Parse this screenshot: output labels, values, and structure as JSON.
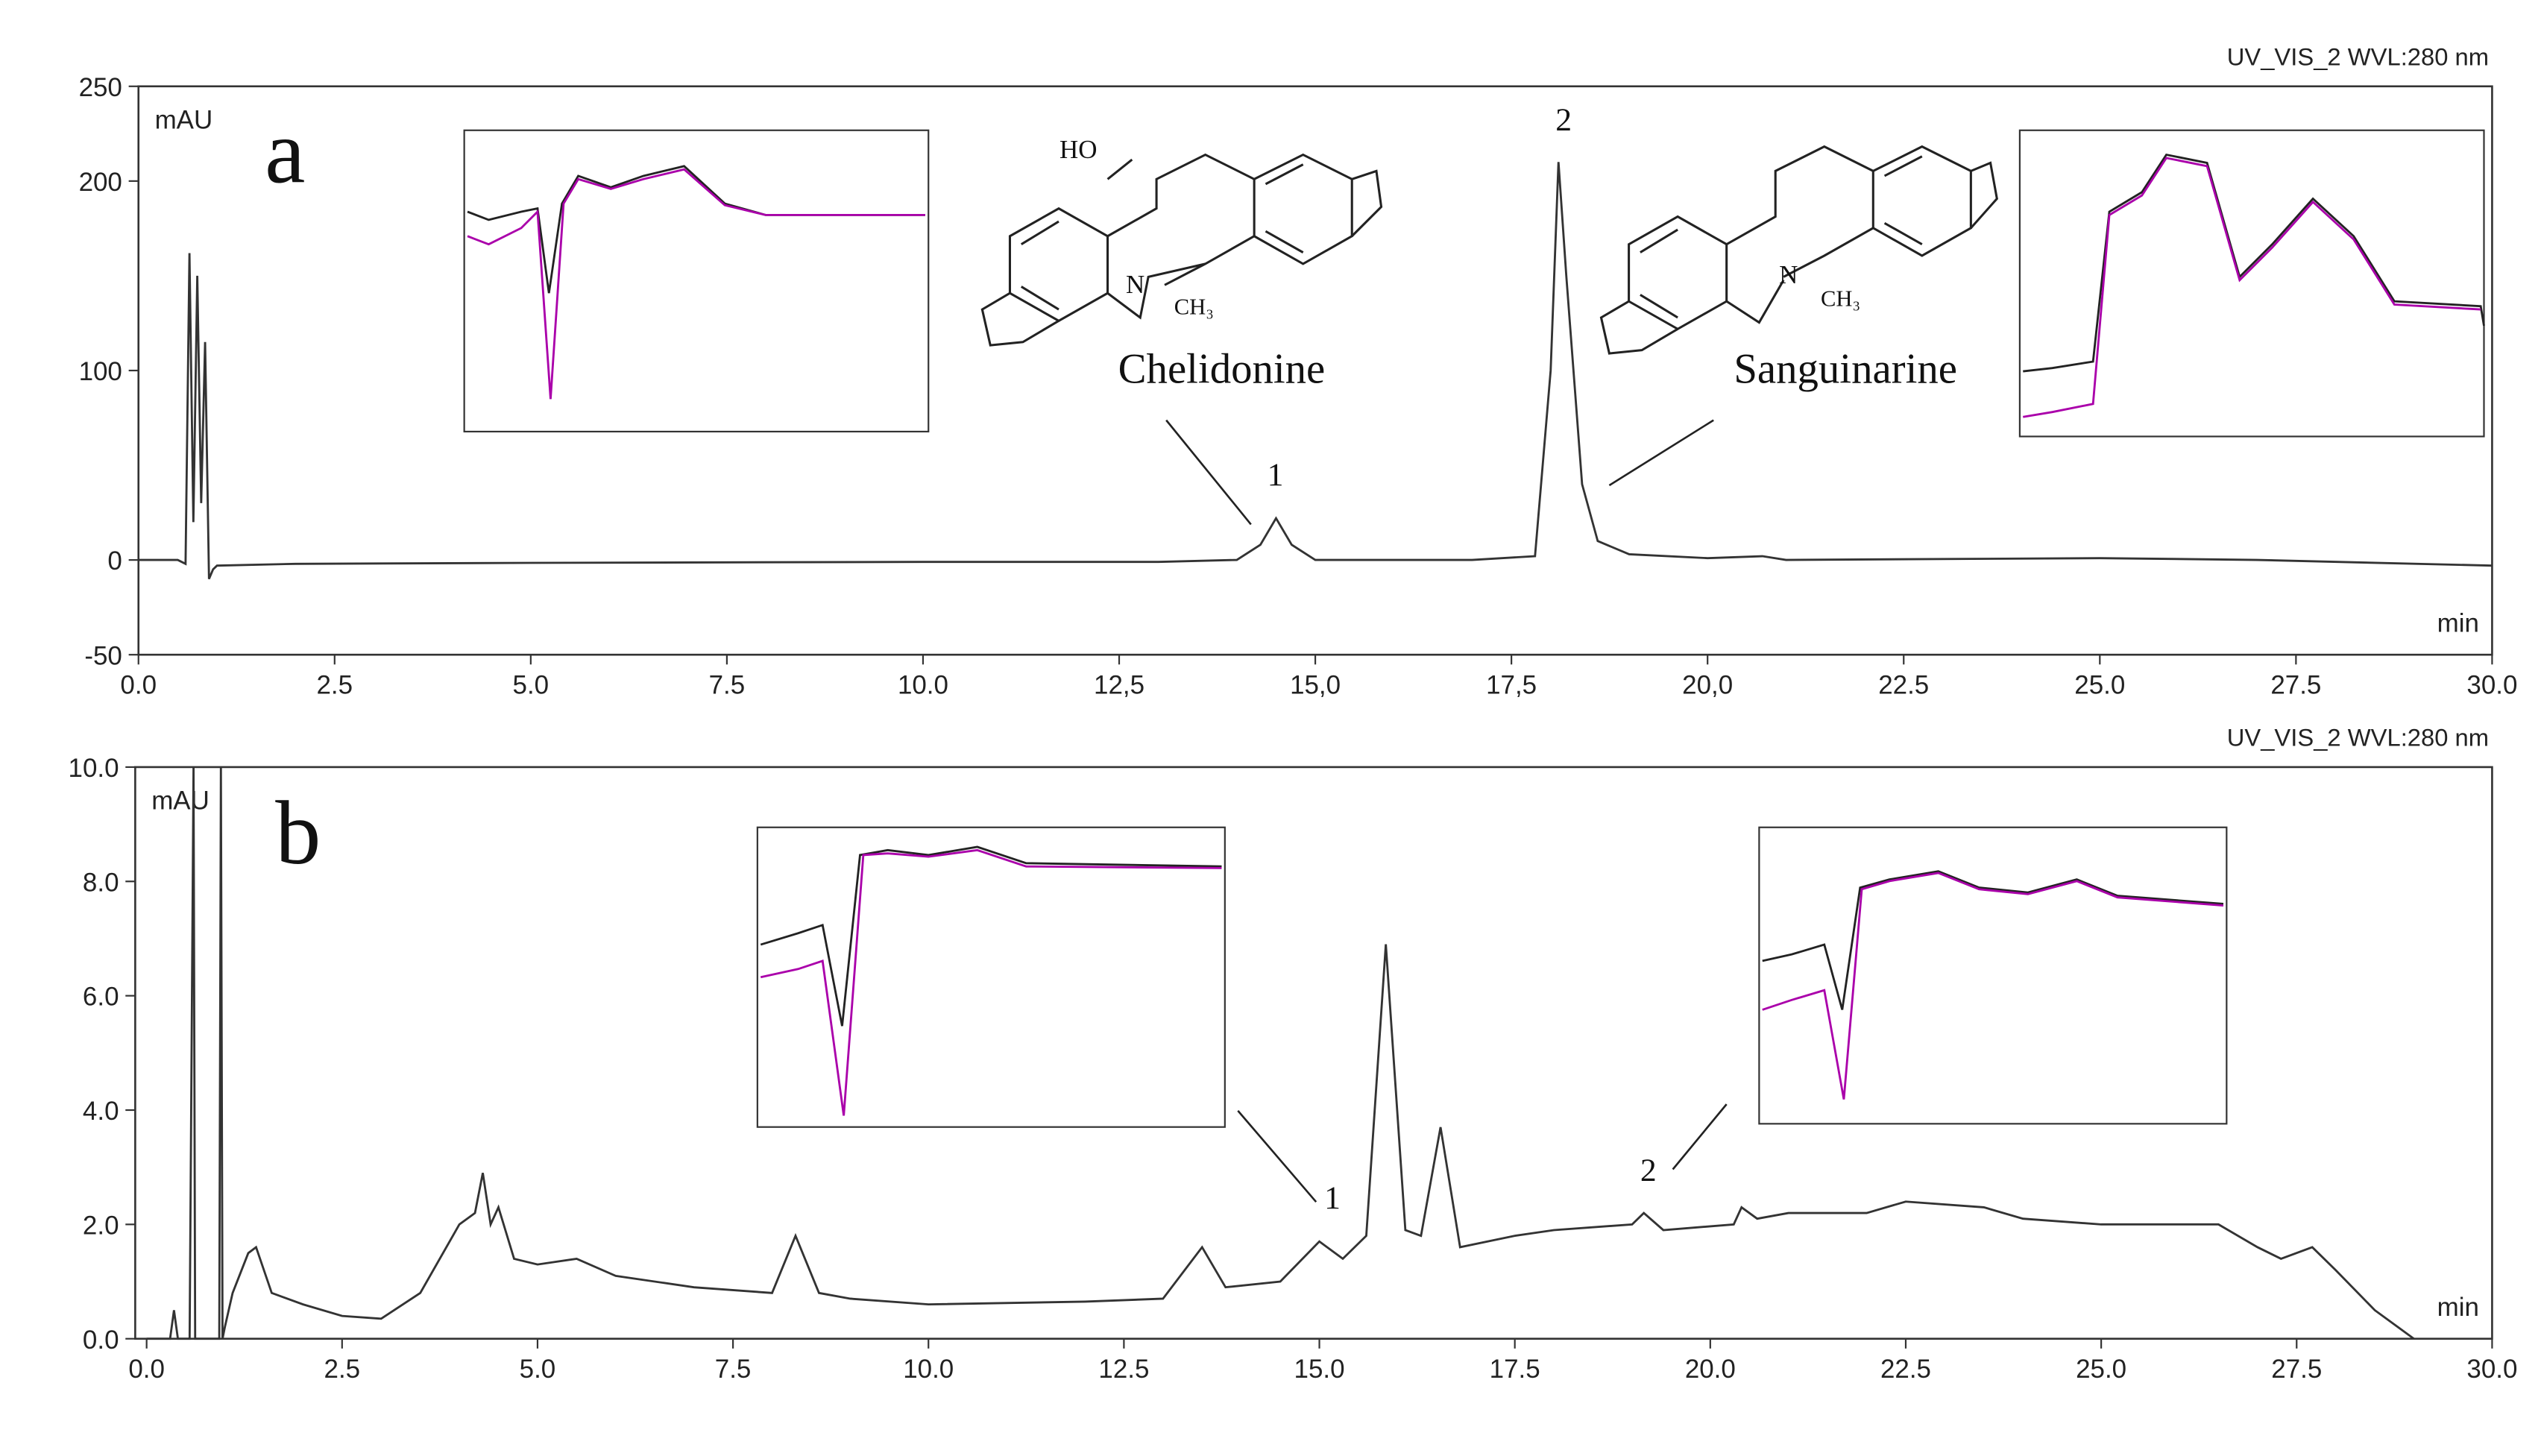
{
  "chart_data": [
    {
      "type": "line",
      "title": "UV_VIS_2 WVL:280 nm",
      "ylabel": "mAU",
      "xlabel": "min",
      "xlim": [
        0,
        30
      ],
      "ylim": [
        -50,
        250
      ],
      "xticks": [
        {
          "value": 0,
          "label": "0.0"
        },
        {
          "value": 2.5,
          "label": "2.5"
        },
        {
          "value": 5,
          "label": "5.0"
        },
        {
          "value": 7.5,
          "label": "7.5"
        },
        {
          "value": 10,
          "label": "10.0"
        },
        {
          "value": 12.5,
          "label": "12,5"
        },
        {
          "value": 15,
          "label": "15,0"
        },
        {
          "value": 17.5,
          "label": "17,5"
        },
        {
          "value": 20,
          "label": "20,0"
        },
        {
          "value": 22.5,
          "label": "22.5"
        },
        {
          "value": 25,
          "label": "25.0"
        },
        {
          "value": 27.5,
          "label": "27.5"
        },
        {
          "value": 30,
          "label": "30.0"
        }
      ],
      "yticks": [
        -50,
        0,
        100,
        200,
        250
      ],
      "color": "#333333",
      "x": [
        0,
        0.5,
        0.6,
        0.65,
        0.7,
        0.75,
        0.8,
        0.85,
        0.9,
        0.95,
        1.0,
        2,
        5,
        10,
        13,
        14,
        14.3,
        14.5,
        14.7,
        15,
        17,
        17.8,
        18,
        18.1,
        18.2,
        18.4,
        18.6,
        19,
        20,
        20.7,
        21,
        25,
        27,
        30
      ],
      "values": [
        0,
        0,
        -2,
        162,
        20,
        150,
        30,
        115,
        -10,
        -5,
        -3,
        -2,
        -1.5,
        -1,
        -1,
        0,
        8,
        22,
        8,
        0,
        0,
        2,
        100,
        210,
        150,
        40,
        10,
        3,
        1,
        2,
        0,
        1,
        0,
        -3
      ],
      "annotations": [
        "a",
        "1",
        "2",
        "Chelidonine",
        "Sanguinarine",
        "HO",
        "N",
        "CH₃",
        "N",
        "CH₃"
      ]
    },
    {
      "type": "line",
      "title": "UV_VIS_2 WVL:280 nm",
      "ylabel": "mAU",
      "xlabel": "min",
      "xlim": [
        0,
        30
      ],
      "ylim": [
        0,
        10
      ],
      "xticks": [
        {
          "value": 0,
          "label": "0.0"
        },
        {
          "value": 2.5,
          "label": "2.5"
        },
        {
          "value": 5,
          "label": "5.0"
        },
        {
          "value": 7.5,
          "label": "7.5"
        },
        {
          "value": 10,
          "label": "10.0"
        },
        {
          "value": 12.5,
          "label": "12.5"
        },
        {
          "value": 15,
          "label": "15.0"
        },
        {
          "value": 17.5,
          "label": "17.5"
        },
        {
          "value": 20,
          "label": "20.0"
        },
        {
          "value": 22.5,
          "label": "22.5"
        },
        {
          "value": 25,
          "label": "25.0"
        },
        {
          "value": 27.5,
          "label": "27.5"
        },
        {
          "value": 30,
          "label": "30.0"
        }
      ],
      "yticks": [
        {
          "value": 0,
          "label": "0.0"
        },
        {
          "value": 2,
          "label": "2.0"
        },
        {
          "value": 4,
          "label": "4.0"
        },
        {
          "value": 6,
          "label": "6.0"
        },
        {
          "value": 8,
          "label": "8.0"
        },
        {
          "value": 10,
          "label": "10.0"
        }
      ],
      "color": "#333333",
      "x": [
        0,
        0.3,
        0.35,
        0.4,
        0.55,
        0.6,
        0.62,
        0.93,
        0.95,
        0.97,
        1.0,
        1.1,
        1.3,
        1.4,
        1.6,
        2,
        2.5,
        3,
        3.5,
        4,
        4.2,
        4.3,
        4.4,
        4.5,
        4.7,
        5,
        5.5,
        6,
        7,
        8,
        8.3,
        8.6,
        9,
        10,
        12,
        13,
        13.5,
        13.8,
        14.5,
        15,
        15.3,
        15.6,
        15.85,
        16.1,
        16.3,
        16.55,
        16.8,
        17.5,
        18,
        19,
        19.15,
        19.4,
        20.3,
        20.4,
        20.6,
        21,
        22,
        22.5,
        23.5,
        24,
        25,
        26.5,
        27,
        27.3,
        27.7,
        28,
        28.5,
        29
      ],
      "values": [
        0,
        0,
        0.5,
        0,
        0,
        10,
        0,
        0,
        10,
        0,
        0.2,
        0.8,
        1.5,
        1.6,
        0.8,
        0.6,
        0.4,
        0.35,
        0.8,
        2.0,
        2.2,
        2.9,
        2.0,
        2.3,
        1.4,
        1.3,
        1.4,
        1.1,
        0.9,
        0.8,
        1.8,
        0.8,
        0.7,
        0.6,
        0.65,
        0.7,
        1.6,
        0.9,
        1.0,
        1.7,
        1.4,
        1.8,
        6.9,
        1.9,
        1.8,
        3.7,
        1.6,
        1.8,
        1.9,
        2.0,
        2.2,
        1.9,
        2.0,
        2.3,
        2.1,
        2.2,
        2.2,
        2.4,
        2.3,
        2.1,
        2.0,
        2.0,
        1.6,
        1.4,
        1.6,
        1.2,
        0.5,
        0
      ],
      "annotations": [
        "b",
        "1",
        "2"
      ]
    }
  ]
}
